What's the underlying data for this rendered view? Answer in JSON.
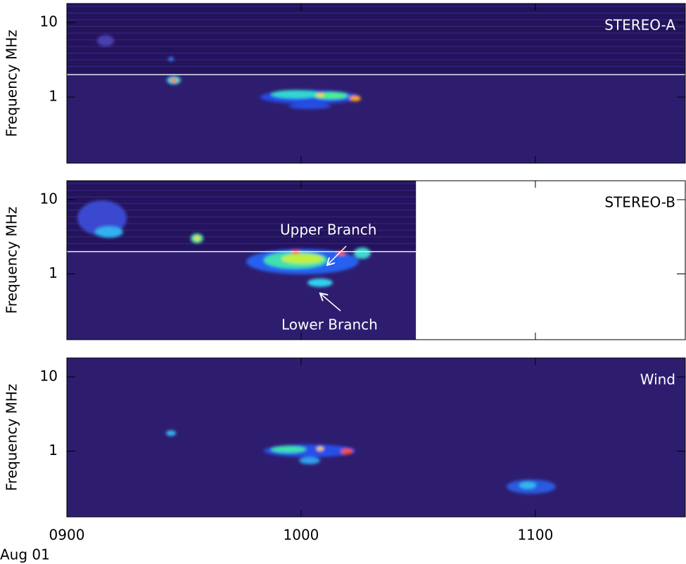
{
  "chart_data": {
    "type": "spectrogram",
    "xlabel": "Aug 01",
    "xlim": [
      9,
      11.64
    ],
    "xticks": [
      {
        "value": 9,
        "label": "0900"
      },
      {
        "value": 10,
        "label": "1000"
      },
      {
        "value": 11,
        "label": "1100"
      }
    ],
    "log_y": true,
    "panels": [
      {
        "label": "STEREO-A",
        "ylabel": "Frequency MHz",
        "ylim": [
          0.13,
          18
        ],
        "yticks": [
          1,
          10
        ],
        "hline": 2
      },
      {
        "label": "STEREO-B",
        "ylabel": "Frequency MHz",
        "ylim": [
          0.13,
          18
        ],
        "yticks": [
          1,
          10
        ],
        "hline": 2,
        "data_xlim": [
          9,
          10.49
        ],
        "annotations": [
          "Upper Branch",
          "Lower Branch"
        ]
      },
      {
        "label": "Wind",
        "ylabel": "Frequency MHz",
        "ylim": [
          0.13,
          18
        ],
        "yticks": [
          1,
          10
        ]
      }
    ]
  }
}
